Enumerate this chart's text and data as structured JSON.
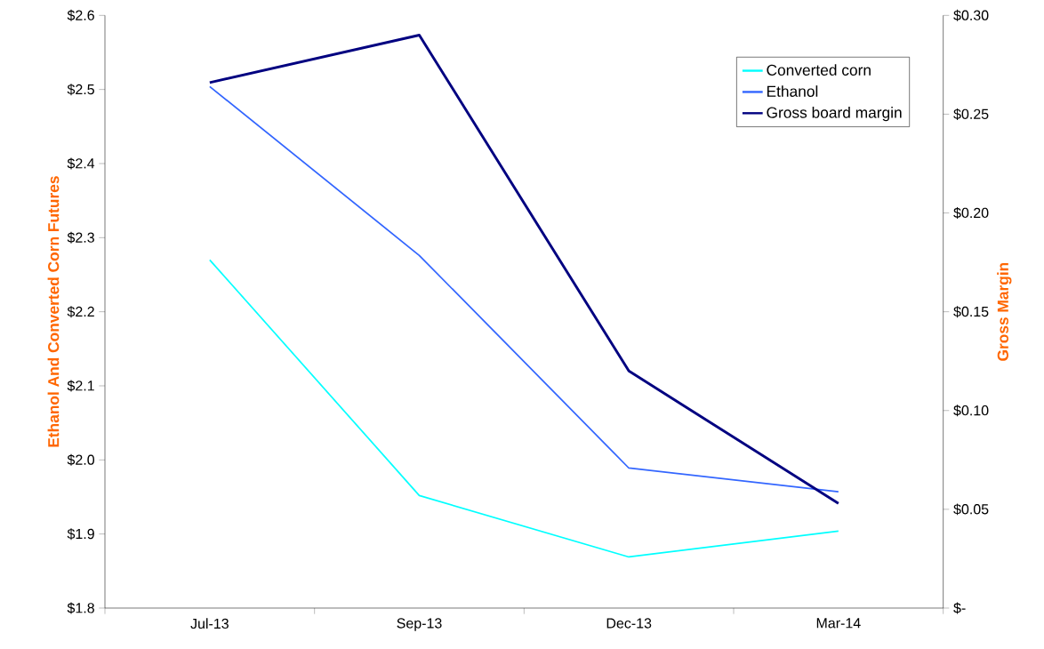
{
  "chart_data": {
    "type": "line",
    "ylabel": "Ethanol And Converted Corn Futures",
    "y2label": "Gross Margin",
    "categories": [
      "Jul-13",
      "Sep-13",
      "Dec-13",
      "Mar-14"
    ],
    "series": [
      {
        "name": "Converted corn",
        "color": "#00ffff",
        "values": [
          2.27,
          1.952,
          1.869,
          1.904
        ]
      },
      {
        "name": "Ethanol",
        "color": "#3366ff",
        "values": [
          2.504,
          2.276,
          1.989,
          1.957
        ]
      },
      {
        "name": "Gross board margin",
        "color": "#000080",
        "axis": "y2",
        "values": [
          0.266,
          0.29,
          0.12,
          0.053
        ]
      }
    ],
    "ylim": [
      1.8,
      2.6
    ],
    "yticks": [
      {
        "value": 1.8,
        "label": "$1.8"
      },
      {
        "value": 1.9,
        "label": "$1.9"
      },
      {
        "value": 2.0,
        "label": "$2.0"
      },
      {
        "value": 2.1,
        "label": "$2.1"
      },
      {
        "value": 2.2,
        "label": "$2.2"
      },
      {
        "value": 2.3,
        "label": "$2.3"
      },
      {
        "value": 2.4,
        "label": "$2.4"
      },
      {
        "value": 2.5,
        "label": "$2.5"
      },
      {
        "value": 2.6,
        "label": "$2.6"
      }
    ],
    "y2lim": [
      0,
      0.3
    ],
    "y2ticks": [
      {
        "value": 0,
        "label": "$-"
      },
      {
        "value": 0.05,
        "label": "$0.05"
      },
      {
        "value": 0.1,
        "label": "$0.10"
      },
      {
        "value": 0.15,
        "label": "$0.15"
      },
      {
        "value": 0.2,
        "label": "$0.20"
      },
      {
        "value": 0.25,
        "label": "$0.25"
      },
      {
        "value": 0.3,
        "label": "$0.30"
      }
    ],
    "legend": "top right",
    "grid": false,
    "marker": "none",
    "line_style": "solid"
  }
}
